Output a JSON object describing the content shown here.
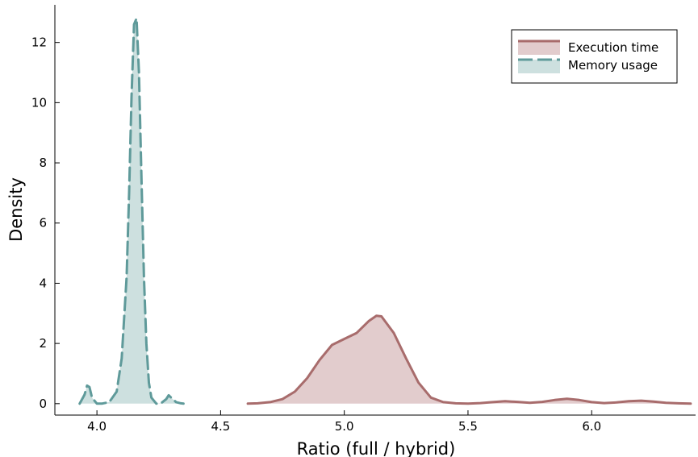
{
  "chart_data": {
    "type": "area",
    "xlabel": "Ratio (full / hybrid)",
    "ylabel": "Density",
    "xlim": [
      3.83,
      6.42
    ],
    "ylim": [
      -0.38,
      13.25
    ],
    "x_ticks": [
      4.0,
      4.5,
      5.0,
      5.5,
      6.0
    ],
    "x_tick_labels": [
      "4.0",
      "4.5",
      "5.0",
      "5.5",
      "6.0"
    ],
    "y_ticks": [
      0,
      2,
      4,
      6,
      8,
      10,
      12
    ],
    "y_tick_labels": [
      "0",
      "2",
      "4",
      "6",
      "8",
      "10",
      "12"
    ],
    "grid": false,
    "legend_position": "top-right",
    "series": [
      {
        "name": "Execution time",
        "line_color": "#a86c6c",
        "fill_color": "#e2cccd",
        "dash": "solid",
        "x": [
          4.61,
          4.65,
          4.7,
          4.75,
          4.8,
          4.85,
          4.9,
          4.95,
          5.0,
          5.05,
          5.1,
          5.13,
          5.15,
          5.2,
          5.25,
          5.3,
          5.35,
          5.4,
          5.45,
          5.5,
          5.55,
          5.6,
          5.65,
          5.7,
          5.75,
          5.8,
          5.85,
          5.9,
          5.95,
          6.0,
          6.05,
          6.1,
          6.15,
          6.2,
          6.25,
          6.3,
          6.35,
          6.4
        ],
        "y": [
          0.0,
          0.01,
          0.05,
          0.15,
          0.4,
          0.85,
          1.45,
          1.95,
          2.15,
          2.35,
          2.75,
          2.92,
          2.9,
          2.35,
          1.5,
          0.7,
          0.2,
          0.05,
          0.01,
          0.0,
          0.02,
          0.05,
          0.08,
          0.06,
          0.03,
          0.06,
          0.12,
          0.16,
          0.12,
          0.05,
          0.02,
          0.04,
          0.08,
          0.1,
          0.07,
          0.03,
          0.01,
          0.0
        ]
      },
      {
        "name": "Memory usage",
        "line_color": "#5f9a9a",
        "fill_color": "#cde0df",
        "dash": "dashed",
        "x": [
          3.93,
          3.95,
          3.96,
          3.97,
          3.98,
          4.0,
          4.02,
          4.05,
          4.08,
          4.1,
          4.12,
          4.13,
          4.14,
          4.15,
          4.16,
          4.17,
          4.18,
          4.19,
          4.2,
          4.21,
          4.22,
          4.24,
          4.26,
          4.28,
          4.29,
          4.3,
          4.32,
          4.34,
          4.35
        ],
        "y": [
          0.0,
          0.3,
          0.6,
          0.55,
          0.2,
          0.0,
          0.0,
          0.05,
          0.4,
          1.5,
          4.2,
          7.0,
          10.2,
          12.6,
          12.8,
          11.0,
          7.5,
          4.2,
          2.0,
          0.7,
          0.2,
          0.0,
          0.02,
          0.15,
          0.28,
          0.2,
          0.05,
          0.01,
          0.0
        ]
      }
    ]
  }
}
